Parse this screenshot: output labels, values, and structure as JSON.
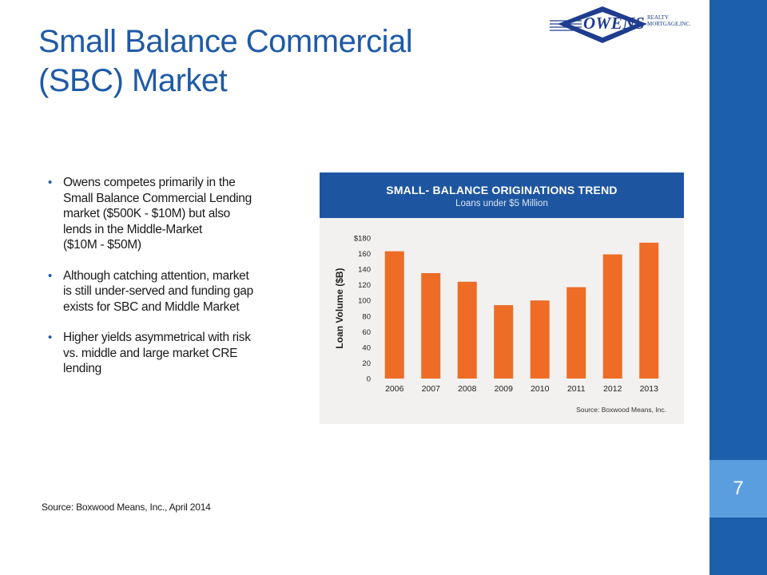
{
  "slide": {
    "title_lines": [
      "Small Balance Commercial",
      "(SBC) Market"
    ],
    "page_number": "7",
    "source": "Source: Boxwood Means, Inc., April 2014",
    "bullets": [
      {
        "lines": [
          "Owens competes primarily in the",
          "Small Balance Commercial Lending",
          "market ($500K - $10M) but also",
          "lends in the Middle-Market",
          "($10M - $50M)"
        ]
      },
      {
        "lines": [
          "Although catching attention, market",
          "is still under-served and funding gap",
          "exists for SBC and Middle Market"
        ]
      },
      {
        "lines": [
          "Higher yields asymmetrical with risk",
          "vs. middle and large market CRE",
          "lending"
        ]
      }
    ],
    "colors": {
      "accent_blue": "#1c5fab",
      "title_blue": "#1f5aa6",
      "page_box": "#5b9ee0"
    }
  },
  "logo": {
    "name": "OWENS",
    "sub_line1": "REALTY",
    "sub_line2": "MORTGAGE,INC."
  },
  "chart_data": {
    "type": "bar",
    "title": "SMALL- BALANCE ORIGINATIONS TREND",
    "subtitle": "Loans under $5 Million",
    "xlabel": "",
    "ylabel": "Loan Volume ($B)",
    "categories": [
      "2006",
      "2007",
      "2008",
      "2009",
      "2010",
      "2011",
      "2012",
      "2013"
    ],
    "values": [
      163,
      135,
      124,
      94,
      100,
      117,
      159,
      174
    ],
    "ylim": [
      0,
      180
    ],
    "yticks": [
      0,
      20,
      40,
      60,
      80,
      100,
      120,
      140,
      160,
      180
    ],
    "ytick_labels": [
      "0",
      "20",
      "40",
      "60",
      "80",
      "100",
      "120",
      "140",
      "160",
      "$180"
    ],
    "bar_color": "#ee6c25",
    "header_color": "#1e55a0",
    "source": "Source: Boxwood Means, Inc.",
    "grid": false
  }
}
